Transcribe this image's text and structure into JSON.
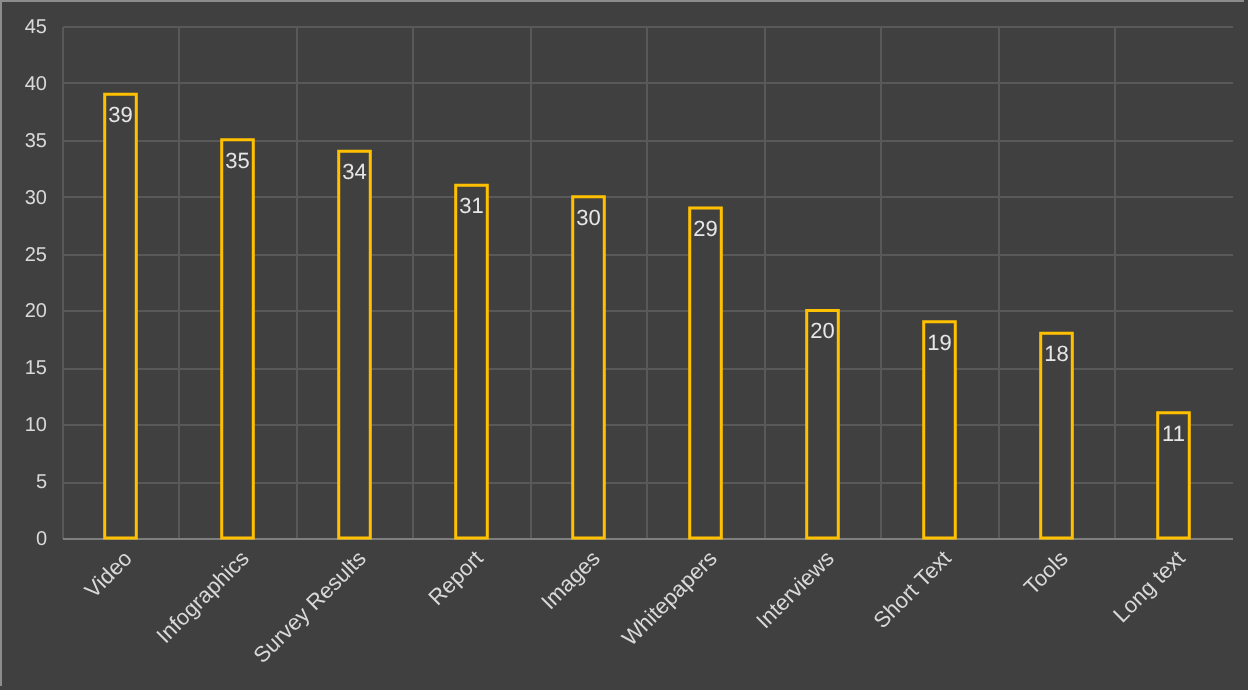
{
  "chart_data": {
    "type": "bar",
    "categories": [
      "Video",
      "Infographics",
      "Survey Results",
      "Report",
      "Images",
      "Whitepapers",
      "Interviews",
      "Short Text",
      "Tools",
      "Long text"
    ],
    "series": [
      {
        "color": "#ffc000",
        "values": [
          39,
          35,
          34,
          31,
          30,
          29,
          20,
          19,
          18,
          11
        ]
      }
    ],
    "ylim": [
      0,
      45
    ],
    "yticks": [
      0,
      5,
      10,
      15,
      20,
      25,
      30,
      35,
      40,
      45
    ],
    "grid": true,
    "data_labels": true
  }
}
